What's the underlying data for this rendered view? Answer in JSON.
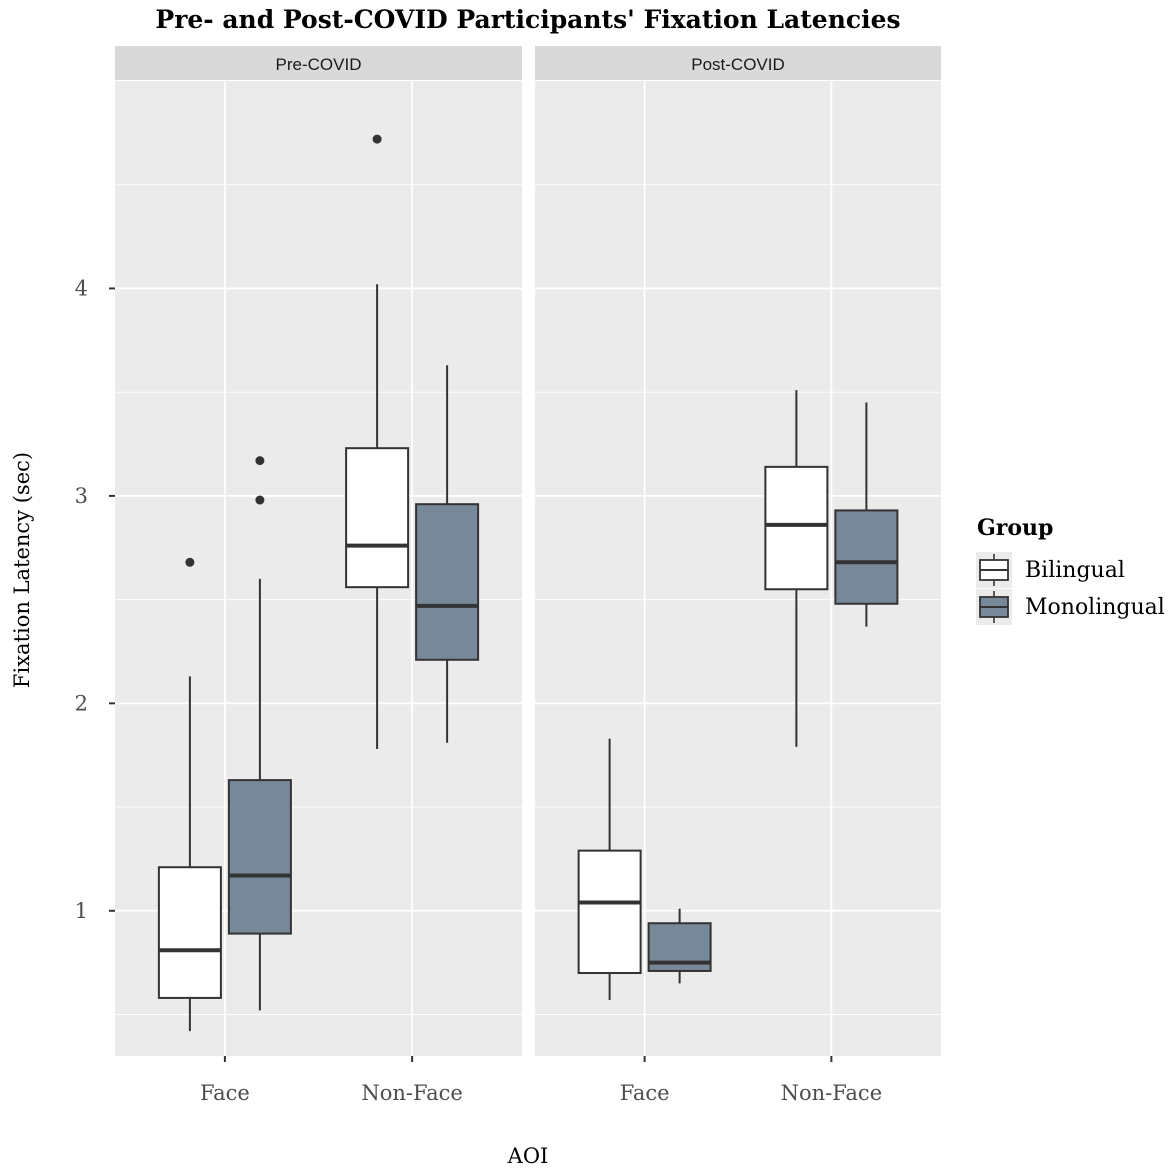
{
  "chart_data": {
    "type": "boxplot",
    "title": "Pre- and Post-COVID Participants' Fixation Latencies",
    "xlabel": "AOI",
    "ylabel": "Fixation Latency (sec)",
    "ylim": [
      0.3,
      5.0
    ],
    "yticks": [
      1,
      2,
      3,
      4
    ],
    "categories": [
      "Face",
      "Non-Face"
    ],
    "legend": {
      "title": "Group",
      "position": "right",
      "entries": [
        {
          "name": "Bilingual",
          "color": "#ffffff"
        },
        {
          "name": "Monolingual",
          "color": "#778899"
        }
      ]
    },
    "panels": [
      {
        "name": "Pre-COVID",
        "boxes": [
          {
            "category": "Face",
            "group": "Bilingual",
            "whisker_low": 0.42,
            "q1": 0.58,
            "median": 0.81,
            "q3": 1.21,
            "whisker_high": 2.13,
            "outliers": [
              2.68
            ]
          },
          {
            "category": "Face",
            "group": "Monolingual",
            "whisker_low": 0.52,
            "q1": 0.89,
            "median": 1.17,
            "q3": 1.63,
            "whisker_high": 2.6,
            "outliers": [
              2.98,
              3.17
            ]
          },
          {
            "category": "Non-Face",
            "group": "Bilingual",
            "whisker_low": 1.78,
            "q1": 2.56,
            "median": 2.76,
            "q3": 3.23,
            "whisker_high": 4.02,
            "outliers": [
              4.72
            ]
          },
          {
            "category": "Non-Face",
            "group": "Monolingual",
            "whisker_low": 1.81,
            "q1": 2.21,
            "median": 2.47,
            "q3": 2.96,
            "whisker_high": 3.63,
            "outliers": []
          }
        ]
      },
      {
        "name": "Post-COVID",
        "boxes": [
          {
            "category": "Face",
            "group": "Bilingual",
            "whisker_low": 0.57,
            "q1": 0.7,
            "median": 1.04,
            "q3": 1.29,
            "whisker_high": 1.83,
            "outliers": []
          },
          {
            "category": "Face",
            "group": "Monolingual",
            "whisker_low": 0.65,
            "q1": 0.71,
            "median": 0.75,
            "q3": 0.94,
            "whisker_high": 1.01,
            "outliers": []
          },
          {
            "category": "Non-Face",
            "group": "Bilingual",
            "whisker_low": 1.79,
            "q1": 2.55,
            "median": 2.86,
            "q3": 3.14,
            "whisker_high": 3.51,
            "outliers": []
          },
          {
            "category": "Non-Face",
            "group": "Monolingual",
            "whisker_low": 2.37,
            "q1": 2.48,
            "median": 2.68,
            "q3": 2.93,
            "whisker_high": 3.45,
            "outliers": []
          }
        ]
      }
    ]
  }
}
